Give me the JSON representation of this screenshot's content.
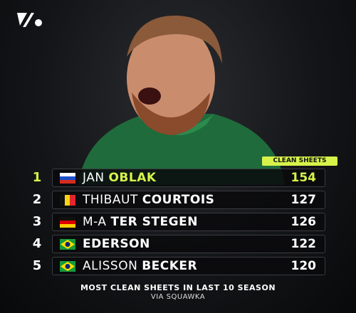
{
  "header": {
    "column": "CLEAN SHEETS"
  },
  "rows": [
    {
      "rank": 1,
      "first": "JAN",
      "last": "OBLAK",
      "value": 154
    },
    {
      "rank": 2,
      "first": "THIBAUT",
      "last": "COURTOIS",
      "value": 127
    },
    {
      "rank": 3,
      "first": "M-A",
      "last": "TER STEGEN",
      "value": 126
    },
    {
      "rank": 4,
      "last": "EDERSON",
      "value": 122
    },
    {
      "rank": 5,
      "first": "ALISSON",
      "last": "BECKER",
      "value": 120
    }
  ],
  "footer": {
    "caption": "MOST CLEAN SHEETS IN LAST 10 SEASON",
    "source": "VIA SQUAWKA"
  }
}
